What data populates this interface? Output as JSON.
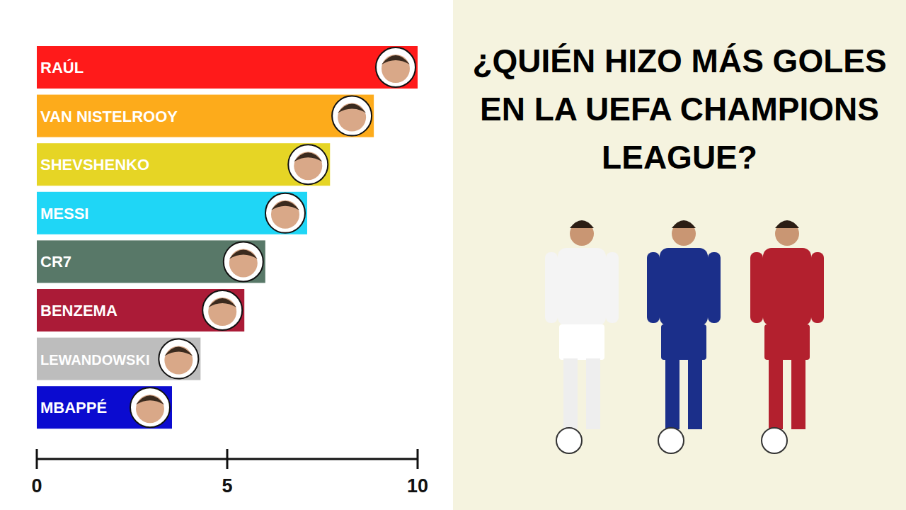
{
  "chart_data": {
    "type": "bar",
    "orientation": "horizontal",
    "title": "¿QUIÉN HIZO MÁS GOLES EN LA UEFA CHAMPIONS LEAGUE?",
    "categories": [
      "RAÚL",
      "VAN NISTELROOY",
      "SHEVSHENKO",
      "MESSI",
      "CR7",
      "BENZEMA",
      "LEWANDOWSKI",
      "MBAPPÉ"
    ],
    "values": [
      10,
      8.85,
      7.7,
      7.1,
      6,
      5.45,
      4.3,
      3.55
    ],
    "colors": [
      "#ff1a1a",
      "#fdab1b",
      "#e6d525",
      "#1fd6f6",
      "#587868",
      "#ab1b37",
      "#bdbdbd",
      "#0b0bd0"
    ],
    "xlim": [
      0,
      10
    ],
    "xticks": [
      0,
      5,
      10
    ],
    "grid": false,
    "data_labels": false,
    "tick_labels": "x"
  }
}
